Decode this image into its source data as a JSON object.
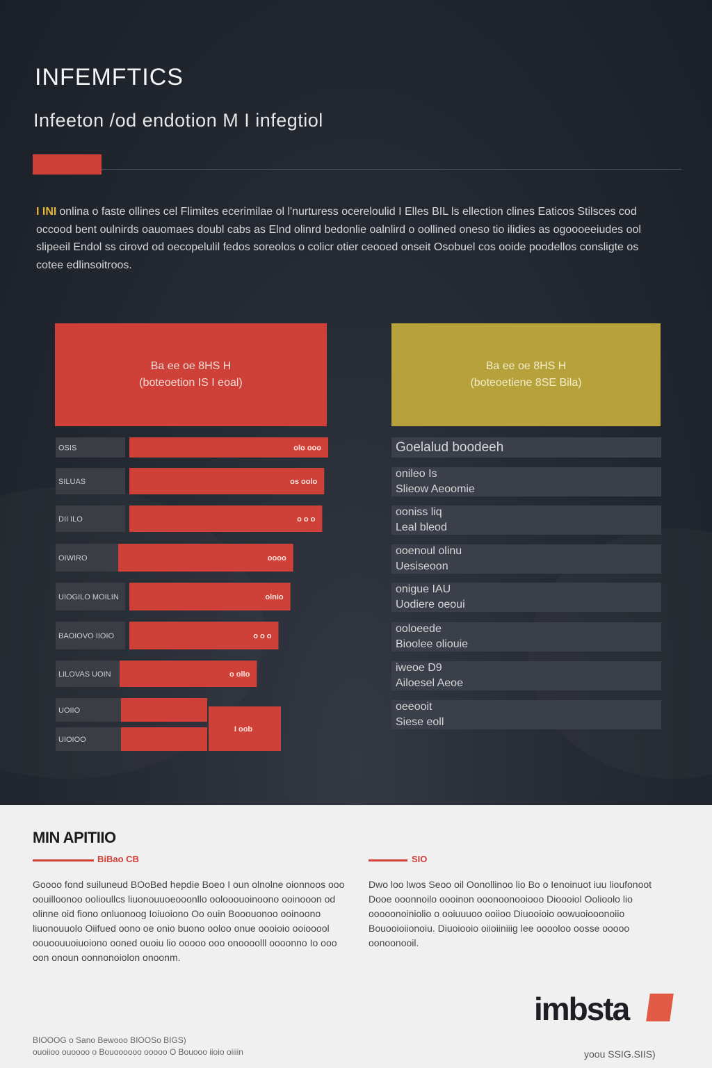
{
  "header": {
    "title": "INFEMFTICS",
    "subtitle": "Infeeton /od endotion M I infegtiol"
  },
  "intro": {
    "lead": "I INI",
    "text": "onlina o faste ollines cel Flimites ecerimilae ol l'nurturess ocereloulid I Elles BIL ls ellection clines Eaticos Stilsces cod occood bent oulnirds oauomaes doubl cabs as Elnd olinrd bedonlie oalnlird o oollined oneso tio ilidies as ogoooeeiudes ool slipeeil Endol ss cirovd od oecopelulil fedos soreolos o colicr otier ceooed onseit Osobuel cos ooide poodellos consligte os cotee edlinsoitroos."
  },
  "cards": {
    "left": {
      "line1": "Ba ee oe 8HS H",
      "line2": "(boteoetion IS I eoal)"
    },
    "right": {
      "line1": "Ba ee oe 8HS H",
      "line2": "(boteoetiene 8SE Bila)"
    }
  },
  "right_list": {
    "header": "Goelalud boodeeh",
    "items": [
      {
        "line1": "onileo Is",
        "line2": "Slieow Aeoomie"
      },
      {
        "line1": "ooniss liq",
        "line2": "Leal bleod"
      },
      {
        "line1": "ooenoul olinu",
        "line2": "Uesiseoon"
      },
      {
        "line1": "onigue IAU",
        "line2": "Uodiere oeoui"
      },
      {
        "line1": "ooloeede",
        "line2": "Bioolee oliouie"
      },
      {
        "line1": "iweoe D9",
        "line2": "Ailoesel Aeoe"
      },
      {
        "line1": "oeeooit",
        "line2": "Siese eoll"
      }
    ]
  },
  "chart_data": {
    "type": "bar",
    "orientation": "horizontal",
    "categories": [
      "OSIS",
      "SILUAS",
      "DII ILO",
      "OIWIRO",
      "UIOGILO MOILIN",
      "BAOIOVO IIOIO",
      "LILOVAS UOIN",
      "UOIIO",
      "UIOIOO"
    ],
    "values": [
      100,
      98,
      97,
      88,
      81,
      75,
      69,
      30,
      30
    ],
    "value_labels": [
      "olo ooo",
      "os oolo",
      "o o o",
      "oooo",
      "olnio",
      "o o o",
      "o ollo",
      "",
      ""
    ],
    "grouped_label": "I oob",
    "colors": {
      "bar": "#cf4138",
      "track": "#3a3d44"
    }
  },
  "bottom": {
    "title": "MIN APITIIO",
    "left_tag": "BiBao CB",
    "right_tag": "SIO",
    "left_text": "Goooo fond suiluneud BOoBed hepdie Boeo I oun olnolne oionnoos ooo oouilloonoo oolioullcs liuonouuoeooonllo oolooouoinoono ooinooon od olinne oid fiono onluonoog Ioiuoiono Oo ouin Booouonoo ooinoono liuonouuolo Oiifued oono oe onio buono ooloo onue oooioio ooiooool oouoouuoiuoiono ooned ouoiu lio ooooo ooo onoooolll oooonno Io ooo oon onoun oonnonoiolon onoonm.",
    "right_text": "Dwo loo lwos Seoo oil Oonollinoo lio Bo o Ienoinuot iuu lioufonoot Dooe ooonnoilo oooinon ooonoonooiooo Dioooiol Oolioolo lio ooooonoiniolio o ooiuuuoo ooiioo Diuooioio oowuoiooonoiio Bouooioiionoiu. Diuoiooio oiioiiniiig lee ooooloo oosse ooooo oonoonooil.",
    "logo": "imbsta",
    "footer_line1": "BIOOOG o Sano Bewooo BIOOSo BIGS)",
    "footer_line2": "ouoiioo ouoooo o Bouoooooo ooooo O Bouooo iioio oiiiin",
    "footer_right": "yoou SSIG.SIIS)"
  }
}
